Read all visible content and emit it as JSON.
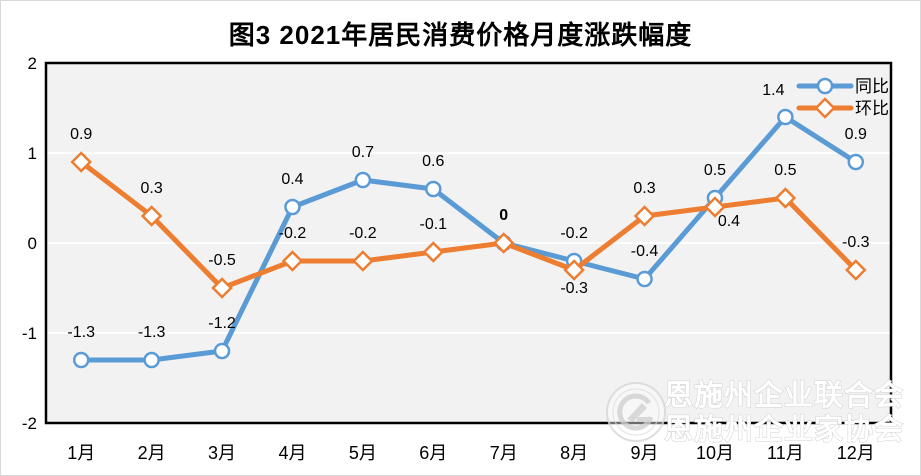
{
  "title": "图3 2021年居民消费价格月度涨跌幅度",
  "watermark": {
    "line1": "恩施州企业联合会",
    "line2": "恩施州企业家协会"
  },
  "colors": {
    "tongbi_blue": "#5B9BD5",
    "huanbi_orange": "#ED7D31",
    "plot_bg": "#F2F2F2",
    "gridline": "#FFFFFF",
    "plot_border": "#000000",
    "text": "#000000",
    "watermark_gray": "#CFCFCF"
  },
  "chart_data": {
    "type": "line",
    "title": "图3 2021年居民消费价格月度涨跌幅度",
    "categories": [
      "1月",
      "2月",
      "3月",
      "4月",
      "5月",
      "6月",
      "7月",
      "8月",
      "9月",
      "10月",
      "11月",
      "12月"
    ],
    "series": [
      {
        "id": "tongbi",
        "name": "同比",
        "color": "#5B9BD5",
        "marker": "circle",
        "values": [
          -1.3,
          -1.3,
          -1.2,
          0.4,
          0.7,
          0.6,
          0,
          -0.2,
          -0.4,
          0.5,
          1.4,
          0.9
        ]
      },
      {
        "id": "huanbi",
        "name": "环比",
        "color": "#ED7D31",
        "marker": "diamond",
        "values": [
          0.9,
          0.3,
          -0.5,
          -0.2,
          -0.2,
          -0.1,
          0,
          -0.3,
          0.3,
          0.4,
          0.5,
          -0.3
        ]
      }
    ],
    "ylim": [
      -2,
      2
    ],
    "yticks": [
      "2",
      "1",
      "0",
      "-1",
      "-2"
    ],
    "grid": true,
    "data_labels": true,
    "legend_position": "top-right-inside"
  }
}
